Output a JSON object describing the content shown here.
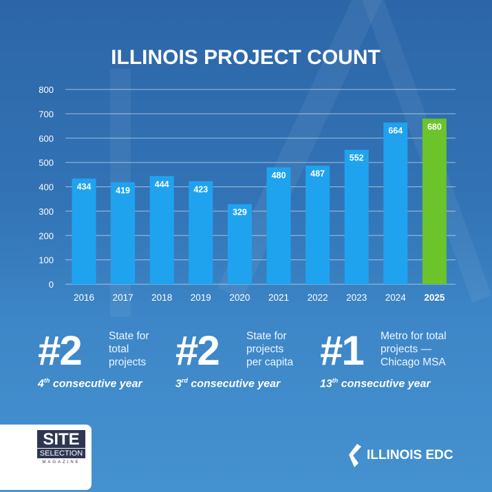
{
  "chart_data": {
    "type": "bar",
    "title": "ILLINOIS PROJECT COUNT",
    "categories": [
      "2016",
      "2017",
      "2018",
      "2019",
      "2020",
      "2021",
      "2022",
      "2023",
      "2024",
      "2025"
    ],
    "values": [
      434,
      419,
      444,
      423,
      329,
      480,
      487,
      552,
      664,
      680
    ],
    "highlight_category": "2025",
    "ylim": [
      0,
      800
    ],
    "yticks": [
      0,
      100,
      200,
      300,
      400,
      500,
      600,
      700,
      800
    ],
    "grid": true,
    "xlabel": "",
    "ylabel": "",
    "colors": {
      "bar": "#1fa3ef",
      "highlight": "#6ac42a"
    }
  },
  "stats": [
    {
      "rank": "#2",
      "desc": [
        "State for",
        "total",
        "projects"
      ],
      "sub_num": "4",
      "sub_sup": "th",
      "sub_text": " consecutive year"
    },
    {
      "rank": "#2",
      "desc": [
        "State for",
        "projects",
        "per capita"
      ],
      "sub_num": "3",
      "sub_sup": "rd",
      "sub_text": " consecutive year"
    },
    {
      "rank": "#1",
      "desc": [
        "Metro for total",
        "projects —",
        "Chicago MSA"
      ],
      "sub_num": "13",
      "sub_sup": "th",
      "sub_text": " consecutive year"
    }
  ],
  "logos": {
    "site_selection": {
      "line1": "SITE",
      "line2": "SELECTION",
      "line3": "MAGAZINE"
    },
    "illinois_edc": "ILLINOIS EDC"
  }
}
